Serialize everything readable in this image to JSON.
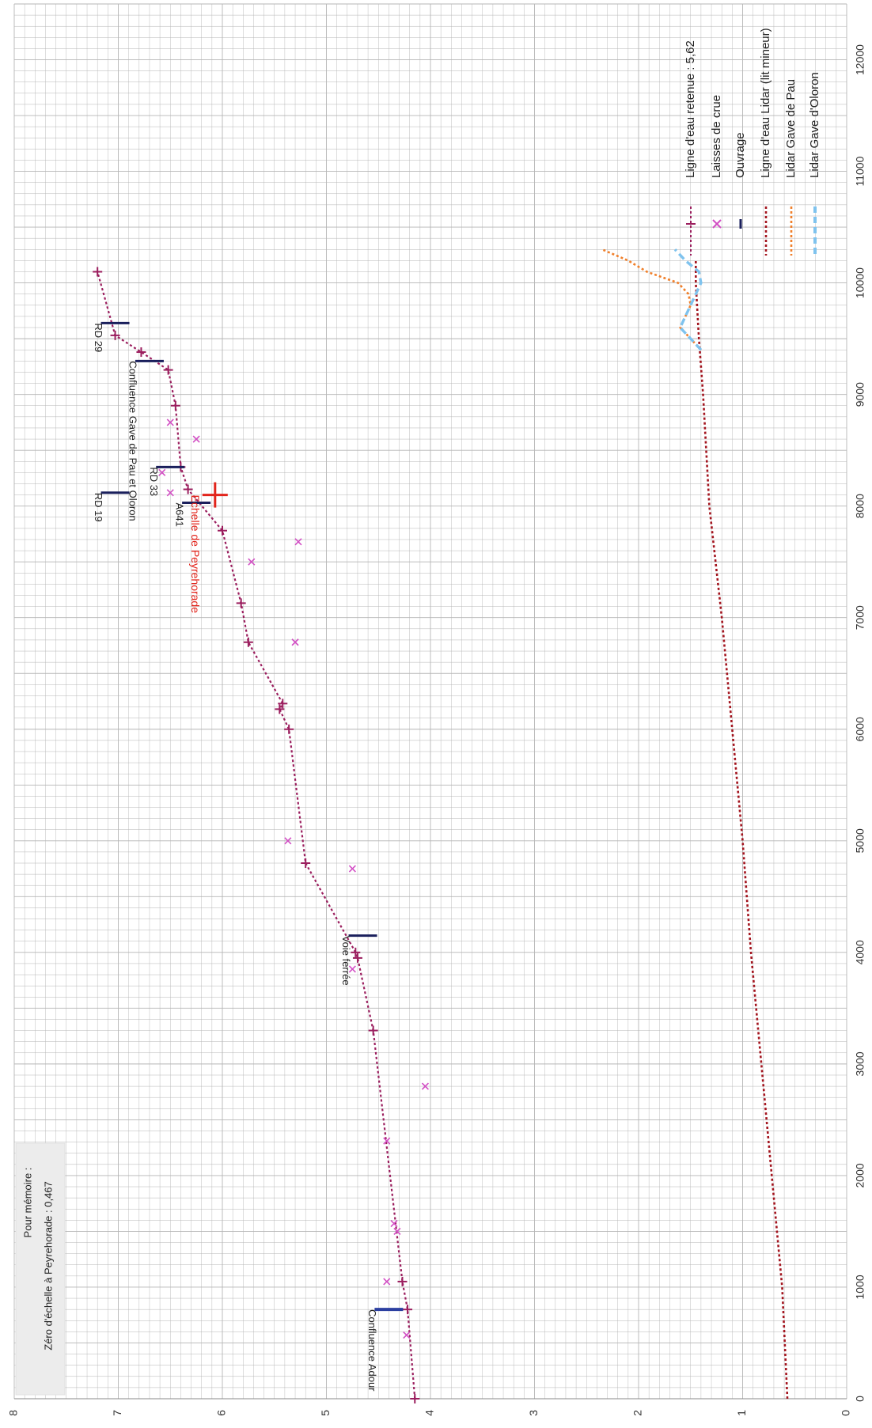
{
  "chart_data": {
    "type": "line",
    "orientation": "rotated-90-clockwise",
    "x_axis": {
      "min": 0,
      "max": 12500,
      "ticks": [
        0,
        1000,
        2000,
        3000,
        4000,
        5000,
        6000,
        7000,
        8000,
        9000,
        10000,
        11000,
        12000
      ],
      "label": ""
    },
    "y_axis": {
      "min": 0,
      "max": 8,
      "ticks": [
        0,
        1,
        2,
        3,
        4,
        5,
        6,
        7,
        8
      ],
      "label": ""
    },
    "grid": true,
    "legend_position": "right",
    "colors": {
      "ligne_retenue": "#9b1e5e",
      "laisses": "#d24fc4",
      "ouvrage": "#1a1f5c",
      "lidar_lit_mineur": "#a3141e",
      "lidar_pau": "#f07f2a",
      "lidar_oloron": "#7fc3ee",
      "peyrehorade": "#e2241b",
      "grid": "#b5b5b5",
      "axis_text": "#333333"
    },
    "series": [
      {
        "name": "Ligne d'eau retenue : 5,62",
        "style": "dotted-line-with-plus-markers",
        "x": [
          0,
          800,
          1050,
          3300,
          3950,
          4000,
          4800,
          6000,
          6180,
          6230,
          6780,
          7130,
          7780,
          8150,
          8350,
          8900,
          9220,
          9380,
          9530,
          10100
        ],
        "y": [
          4.15,
          4.22,
          4.27,
          4.55,
          4.7,
          4.72,
          5.2,
          5.36,
          5.45,
          5.42,
          5.75,
          5.82,
          6.0,
          6.33,
          6.4,
          6.45,
          6.52,
          6.78,
          7.03,
          7.2
        ]
      },
      {
        "name": "Laisses de crue",
        "style": "x-markers",
        "x": [
          570,
          1050,
          1500,
          1570,
          2310,
          2800,
          3850,
          4750,
          5000,
          6780,
          7500,
          7680,
          8120,
          8300,
          8600,
          8750
        ],
        "y": [
          4.23,
          4.42,
          4.32,
          4.35,
          4.42,
          4.05,
          4.75,
          4.75,
          5.37,
          5.3,
          5.72,
          5.27,
          6.5,
          6.58,
          6.25,
          6.5
        ]
      },
      {
        "name": "Ouvrage",
        "style": "short-bars",
        "x": [
          800,
          4150,
          8030,
          8120,
          8350,
          9300,
          9640
        ],
        "y": [
          4.4,
          4.65,
          6.25,
          7.03,
          6.5,
          6.7,
          7.03
        ]
      },
      {
        "name": "Ligne d'eau Lidar (lit mineur)",
        "style": "dotted-line",
        "x": [
          0,
          1000,
          2000,
          3000,
          4000,
          5000,
          6000,
          7000,
          8000,
          9000,
          9500,
          10000,
          10200
        ],
        "y": [
          0.57,
          0.62,
          0.72,
          0.82,
          0.92,
          1.0,
          1.1,
          1.2,
          1.32,
          1.38,
          1.42,
          1.45,
          1.45
        ]
      },
      {
        "name": "Lidar Gave de Pau",
        "style": "dotted-line",
        "x": [
          9400,
          9500,
          9600,
          9700,
          9800,
          9900,
          10000,
          10100,
          10200,
          10300
        ],
        "y": [
          1.4,
          1.5,
          1.6,
          1.55,
          1.5,
          1.52,
          1.62,
          1.92,
          2.1,
          2.35
        ]
      },
      {
        "name": "Lidar Gave d'Oloron",
        "style": "dashed-line",
        "x": [
          9400,
          9500,
          9600,
          9700,
          9800,
          9900,
          10000,
          10100,
          10200,
          10300
        ],
        "y": [
          1.4,
          1.5,
          1.6,
          1.55,
          1.5,
          1.45,
          1.4,
          1.42,
          1.55,
          1.65
        ]
      }
    ],
    "annotations": [
      {
        "text": "Confluence Adour",
        "x": 800,
        "y": 4.4
      },
      {
        "text": "Voie ferrée",
        "x": 4150,
        "y": 4.65
      },
      {
        "text": "A641",
        "x": 8030,
        "y": 6.25
      },
      {
        "text": "RD 19",
        "x": 8120,
        "y": 7.03
      },
      {
        "text": "RD 33",
        "x": 8350,
        "y": 6.5
      },
      {
        "text": "Confluence Gave de Pau et Oloron",
        "x": 9300,
        "y": 6.7
      },
      {
        "text": "RD 29",
        "x": 9640,
        "y": 7.03
      },
      {
        "text": "Echelle de Peyrehorade",
        "x": 8100,
        "y": 6.07
      }
    ],
    "note": {
      "line1": "Pour mémoire :",
      "line2": "Zéro d'échelle à Peyrehorade : 0,467"
    }
  }
}
